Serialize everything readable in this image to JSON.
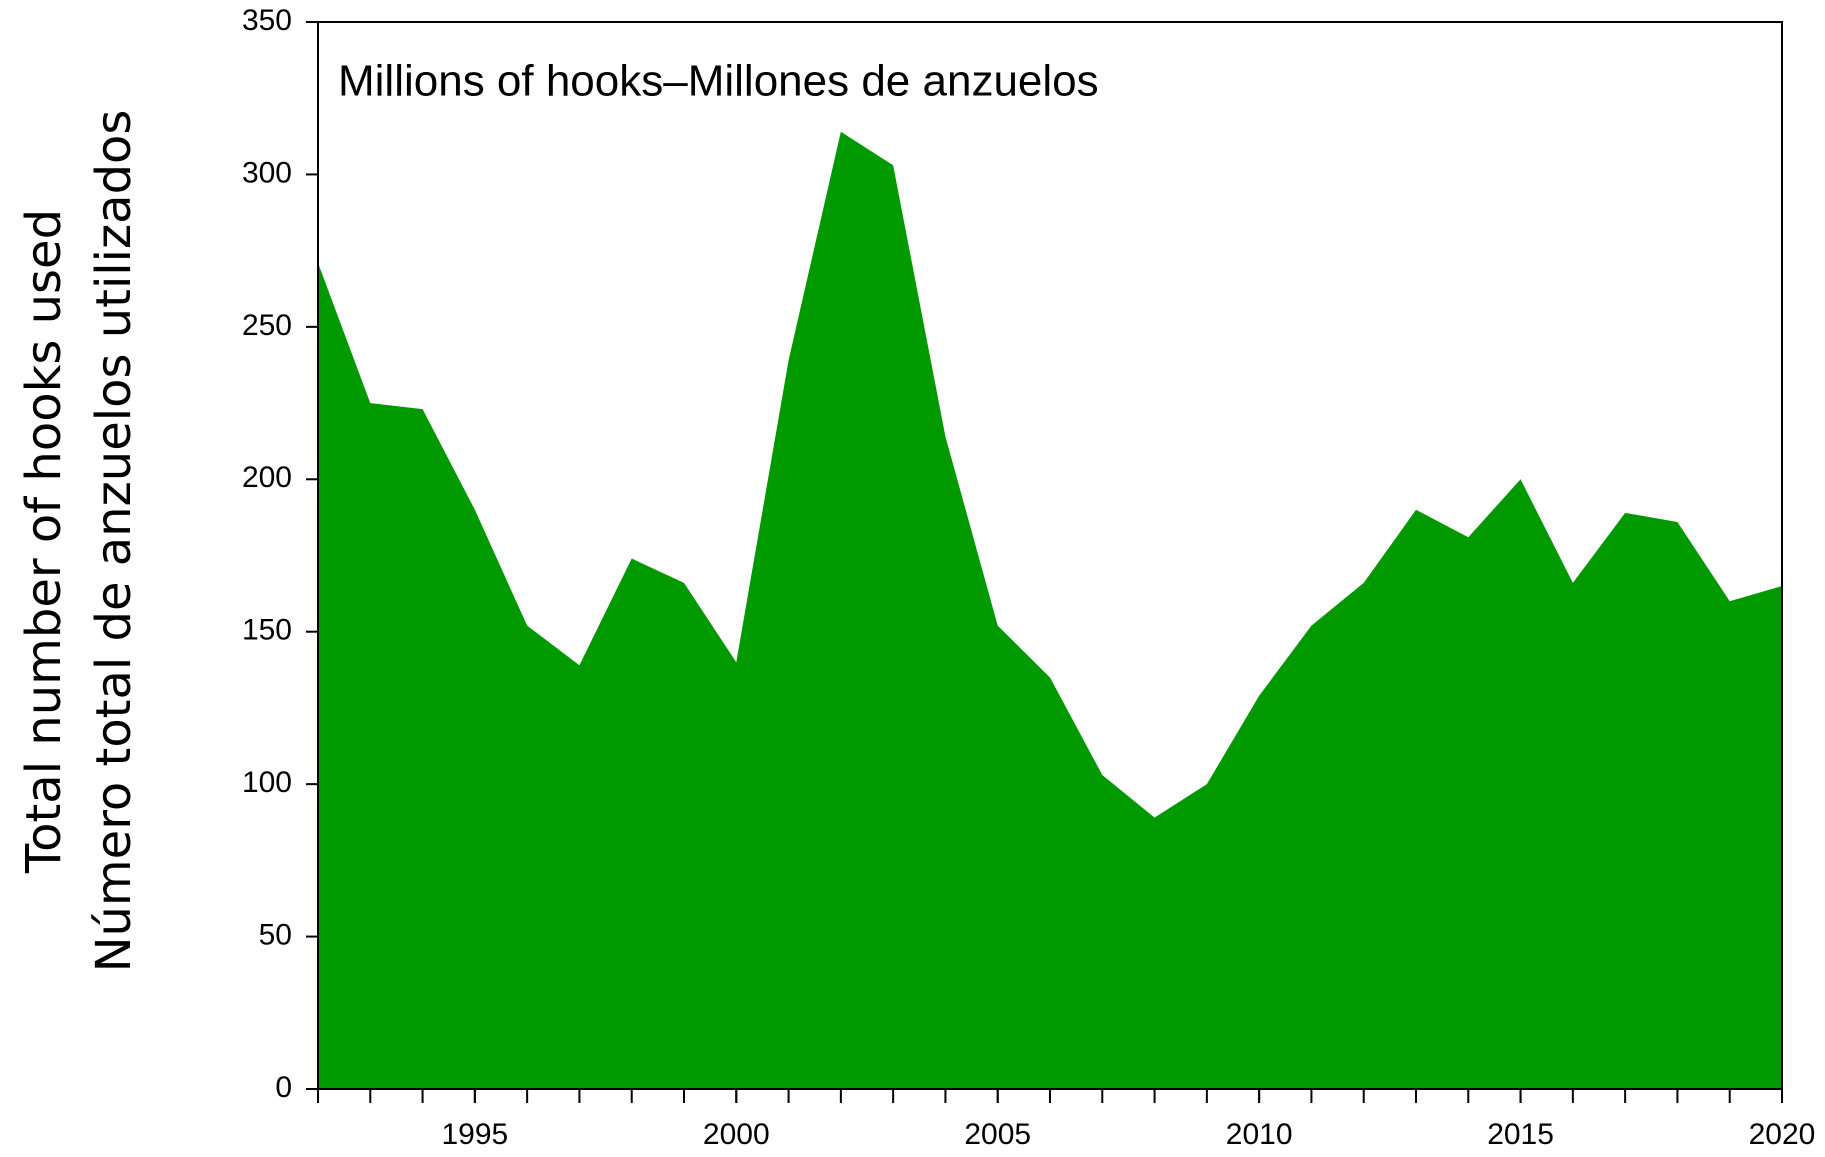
{
  "chart_data": {
    "type": "area",
    "title": "Millions of hooks–Millones de anzuelos",
    "y_label": [
      "Total number of hooks used",
      "Número total de anzuelos utilizados"
    ],
    "x": [
      1992,
      1993,
      1994,
      1995,
      1996,
      1997,
      1998,
      1999,
      2000,
      2001,
      2002,
      2003,
      2004,
      2005,
      2006,
      2007,
      2008,
      2009,
      2010,
      2011,
      2012,
      2013,
      2014,
      2015,
      2016,
      2017,
      2018,
      2019,
      2020
    ],
    "values": [
      271,
      225,
      223,
      190,
      152,
      139,
      174,
      166,
      140,
      239,
      314,
      303,
      214,
      152,
      135,
      103,
      89,
      100,
      129,
      152,
      166,
      190,
      181,
      200,
      166,
      189,
      186,
      160,
      165
    ],
    "color": "#009900",
    "xlim": [
      1992,
      2020
    ],
    "xticks": [
      1995,
      2000,
      2005,
      2010,
      2015,
      2020
    ],
    "ylim": [
      0,
      350
    ],
    "yticks": [
      0,
      50,
      100,
      150,
      200,
      250,
      300,
      350
    ]
  }
}
